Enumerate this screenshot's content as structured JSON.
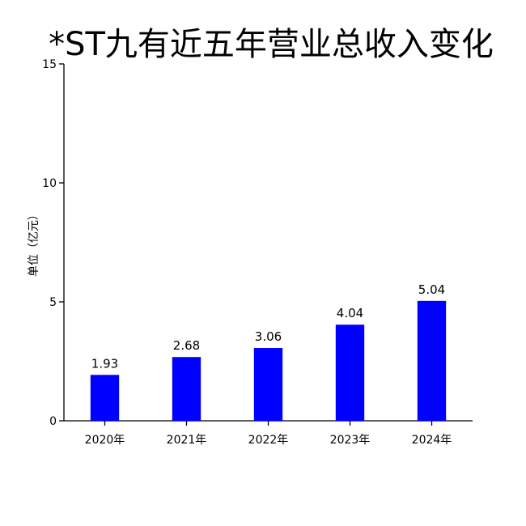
{
  "chart_data": {
    "type": "bar",
    "title": "*ST九有近五年营业总收入变化",
    "xlabel": "",
    "ylabel": "单位（亿元）",
    "categories": [
      "2020年",
      "2021年",
      "2022年",
      "2023年",
      "2024年"
    ],
    "values": [
      1.93,
      2.68,
      3.06,
      4.04,
      5.04
    ],
    "value_labels": [
      "1.93",
      "2.68",
      "3.06",
      "4.04",
      "5.04"
    ],
    "ylim": [
      0,
      15
    ],
    "yticks": [
      0,
      5,
      10,
      15
    ],
    "grid": false,
    "legend": "none",
    "bar_color": "#0000ff"
  }
}
